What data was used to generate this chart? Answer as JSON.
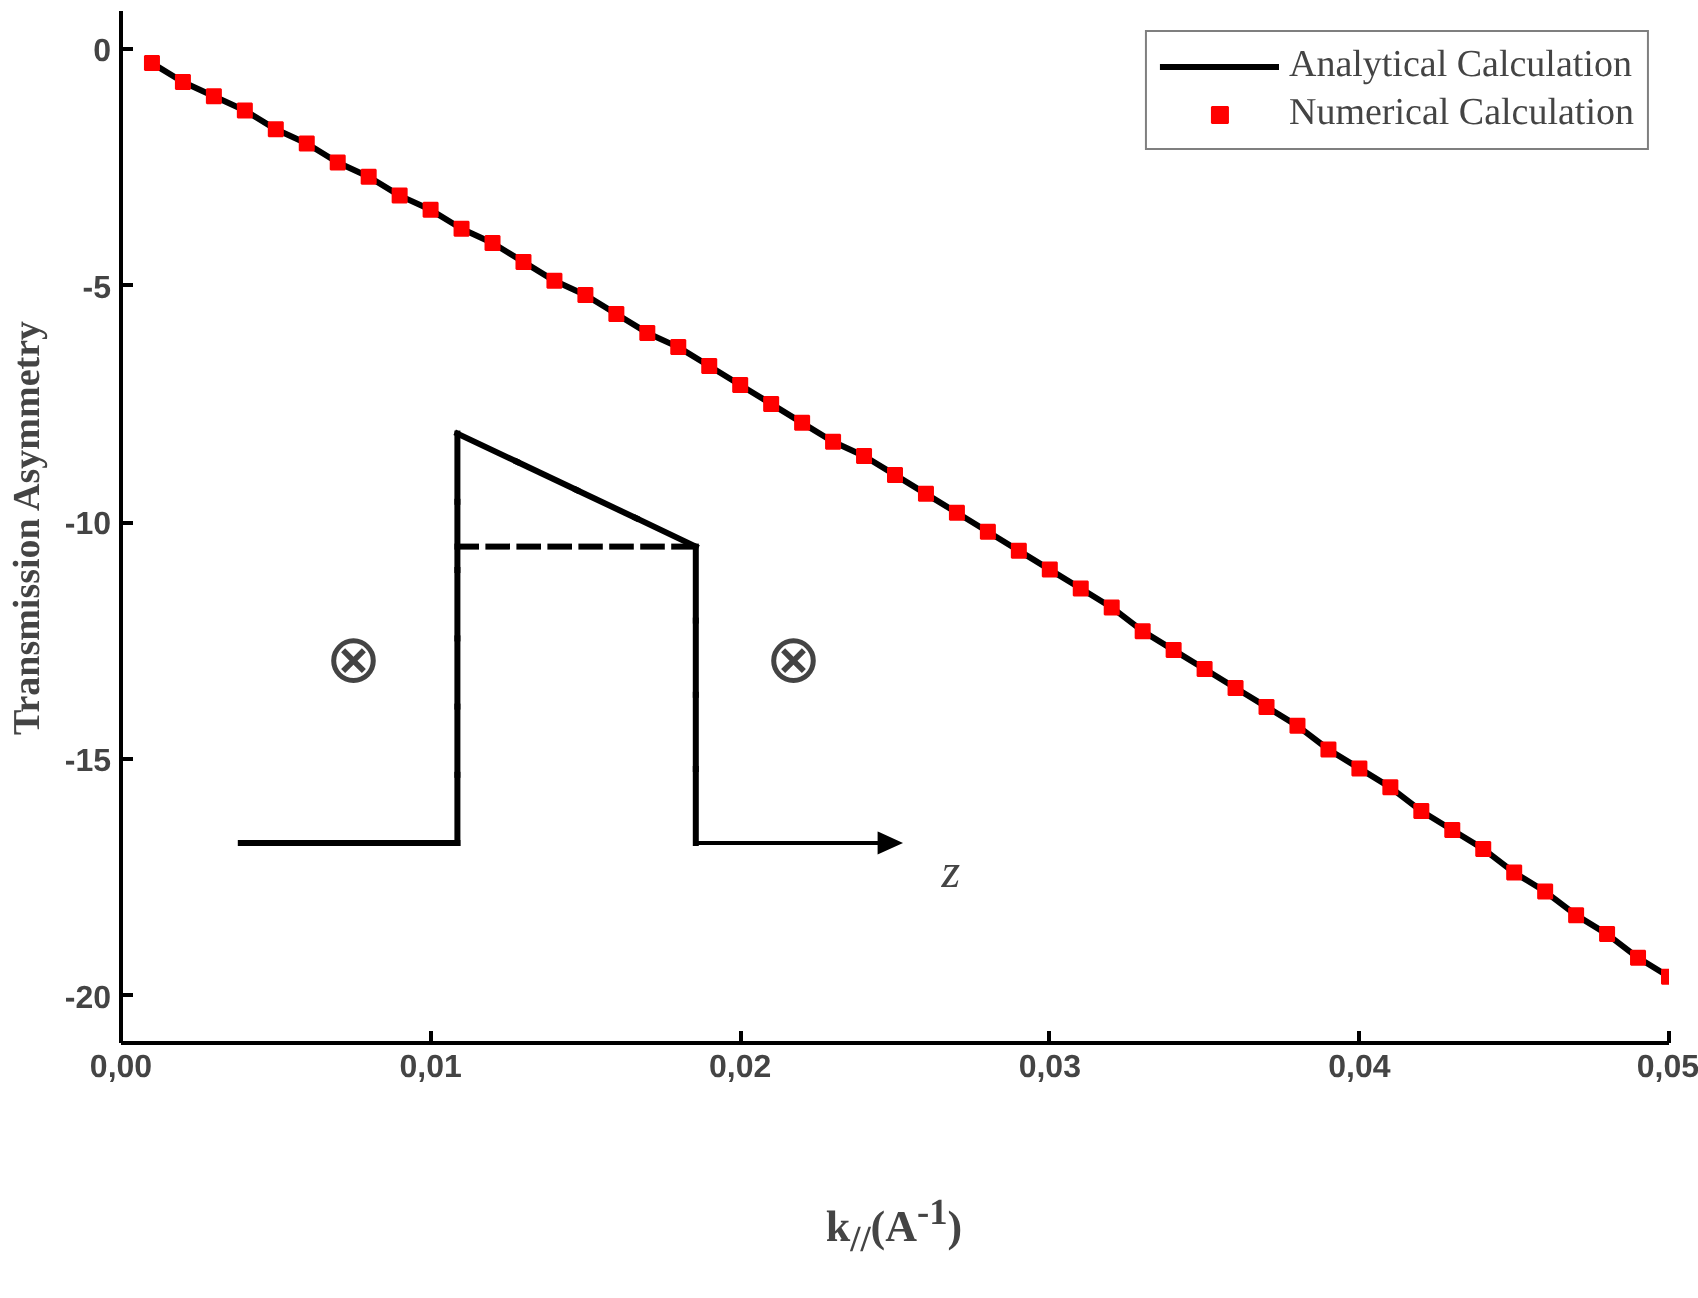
{
  "chart_data": {
    "type": "line",
    "xlabel": "k$_{//}$(A$^{-1}$)",
    "ylabel": "Transmission Asymmetry",
    "x": [
      0.001,
      0.002,
      0.003,
      0.004,
      0.005,
      0.006,
      0.007,
      0.008,
      0.009,
      0.01,
      0.011,
      0.012,
      0.013,
      0.014,
      0.015,
      0.016,
      0.017,
      0.018,
      0.019,
      0.02,
      0.021,
      0.022,
      0.023,
      0.024,
      0.025,
      0.026,
      0.027,
      0.028,
      0.029,
      0.03,
      0.031,
      0.032,
      0.033,
      0.034,
      0.035,
      0.036,
      0.037,
      0.038,
      0.039,
      0.04,
      0.041,
      0.042,
      0.043,
      0.044,
      0.045,
      0.046,
      0.047,
      0.048,
      0.049,
      0.05
    ],
    "series": [
      {
        "name": "Analytical Calculation",
        "type": "line",
        "color": "#000000",
        "marker": "none",
        "line_style": "solid",
        "values": [
          -0.3,
          -0.7,
          -1.0,
          -1.3,
          -1.7,
          -2.0,
          -2.4,
          -2.7,
          -3.1,
          -3.4,
          -3.8,
          -4.1,
          -4.5,
          -4.9,
          -5.2,
          -5.6,
          -6.0,
          -6.3,
          -6.7,
          -7.1,
          -7.5,
          -7.9,
          -8.3,
          -8.6,
          -9.0,
          -9.4,
          -9.8,
          -10.2,
          -10.6,
          -11.0,
          -11.4,
          -11.8,
          -12.3,
          -12.7,
          -13.1,
          -13.5,
          -13.9,
          -14.3,
          -14.8,
          -15.2,
          -15.6,
          -16.1,
          -16.5,
          -16.9,
          -17.4,
          -17.8,
          -18.3,
          -18.7,
          -19.2,
          -19.6
        ]
      },
      {
        "name": "Numerical Calculation",
        "type": "scatter",
        "color": "#ff0000",
        "marker": "square",
        "values": [
          -0.3,
          -0.7,
          -1.0,
          -1.3,
          -1.7,
          -2.0,
          -2.4,
          -2.7,
          -3.1,
          -3.4,
          -3.8,
          -4.1,
          -4.5,
          -4.9,
          -5.2,
          -5.6,
          -6.0,
          -6.3,
          -6.7,
          -7.1,
          -7.5,
          -7.9,
          -8.3,
          -8.6,
          -9.0,
          -9.4,
          -9.8,
          -10.2,
          -10.6,
          -11.0,
          -11.4,
          -11.8,
          -12.3,
          -12.7,
          -13.1,
          -13.5,
          -13.9,
          -14.3,
          -14.8,
          -15.2,
          -15.6,
          -16.1,
          -16.5,
          -16.9,
          -17.4,
          -17.8,
          -18.3,
          -18.7,
          -19.2,
          -19.6
        ]
      }
    ],
    "xlim": [
      0,
      0.05
    ],
    "ylim": [
      -21,
      0.8
    ],
    "xticks": [
      {
        "value": 0,
        "label": "0,00"
      },
      {
        "value": 0.01,
        "label": "0,01"
      },
      {
        "value": 0.02,
        "label": "0,02"
      },
      {
        "value": 0.03,
        "label": "0,03"
      },
      {
        "value": 0.04,
        "label": "0,04"
      },
      {
        "value": 0.05,
        "label": "0,05"
      }
    ],
    "yticks": [
      0,
      -5,
      -10,
      -15,
      -20
    ],
    "annotations": [
      "⊗",
      "⊗",
      "z"
    ],
    "grid": false,
    "legend": "top right"
  }
}
